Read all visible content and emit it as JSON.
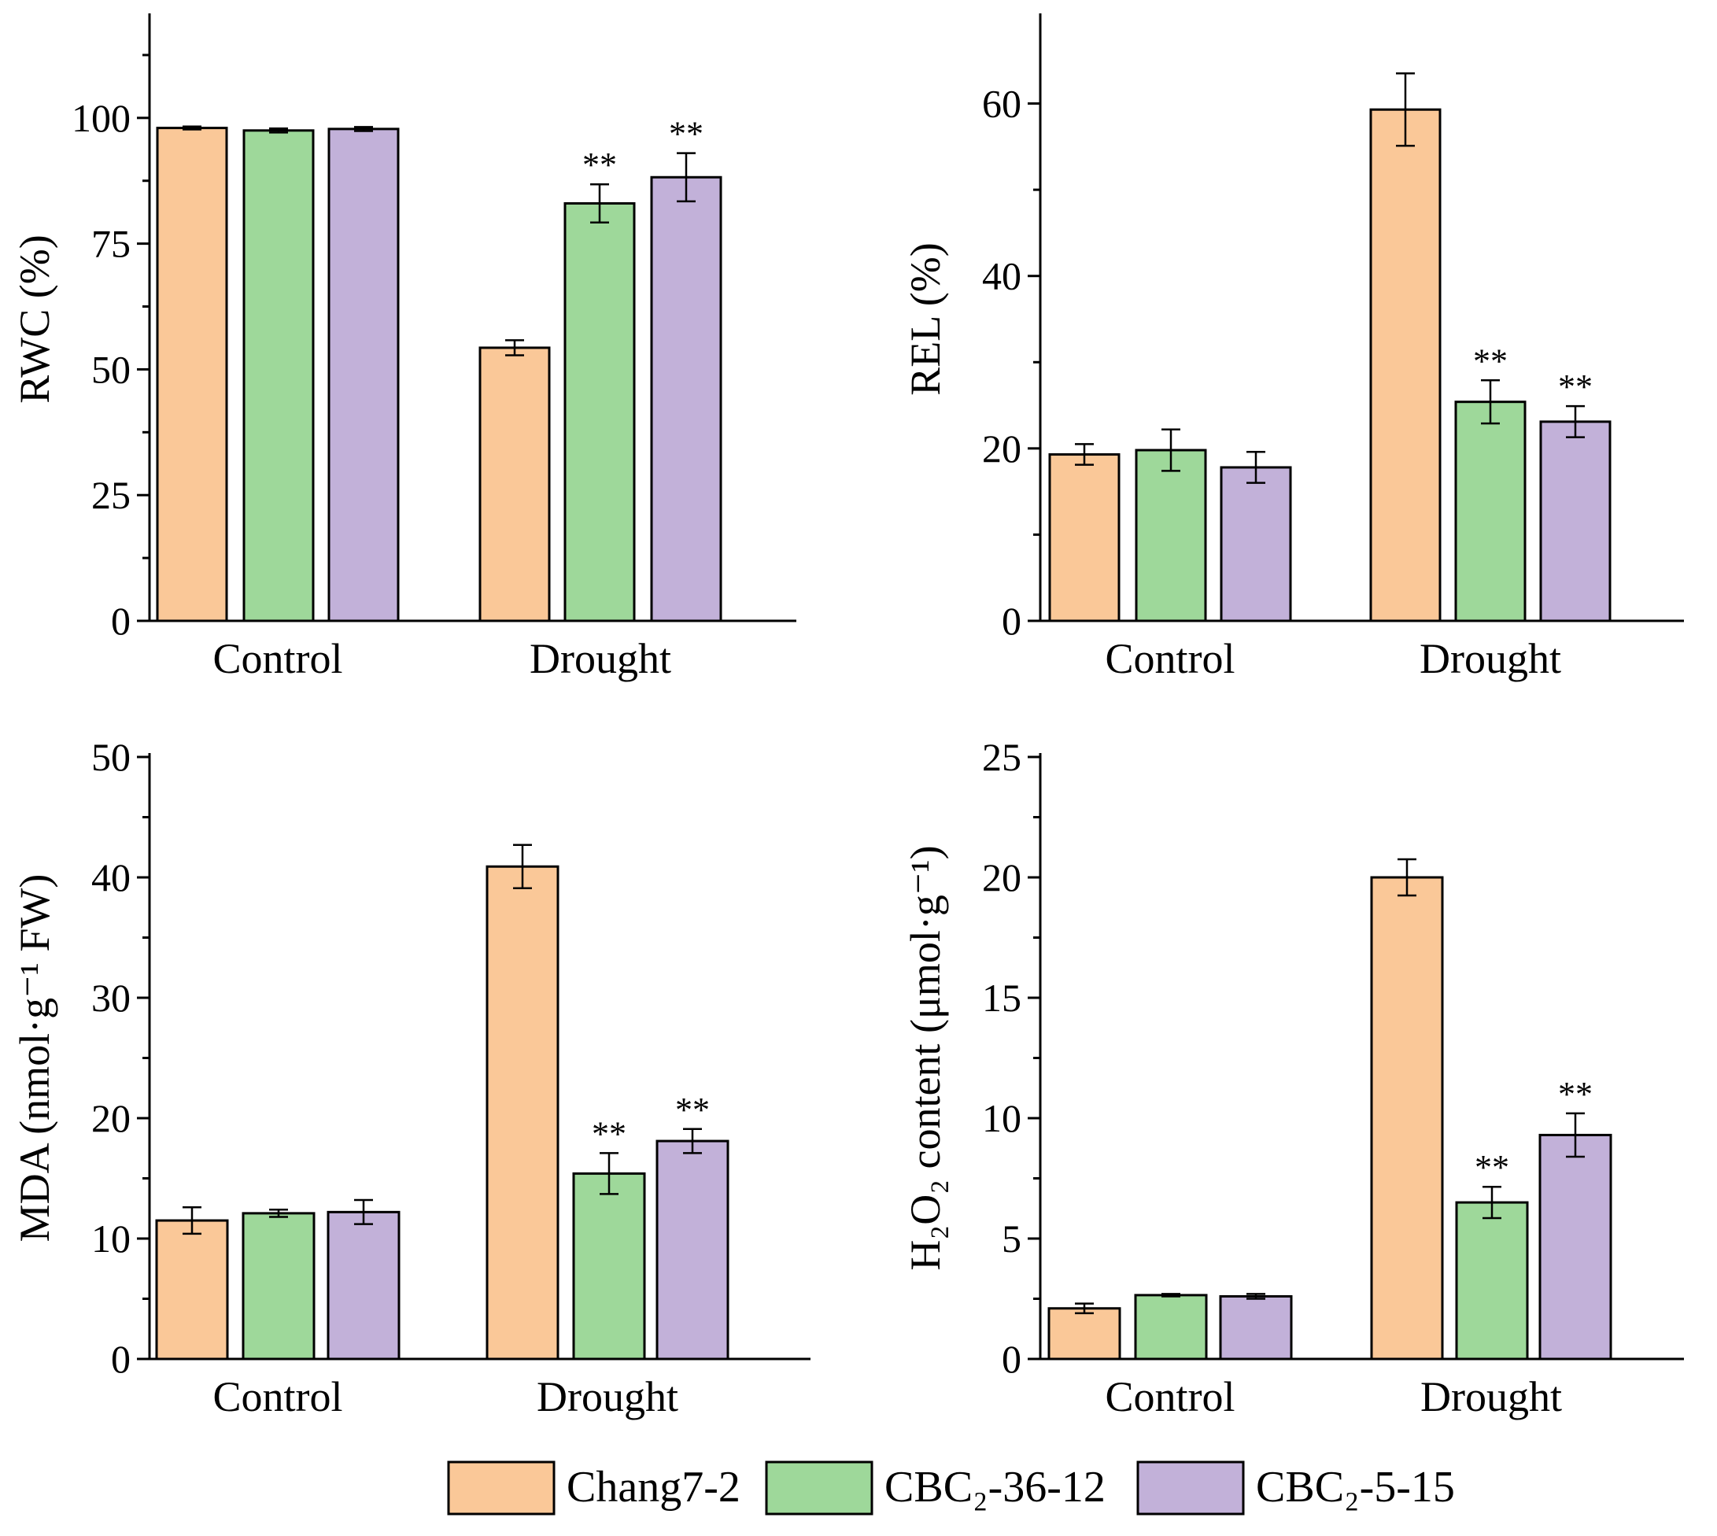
{
  "legend": [
    {
      "label": "Chang7-2",
      "color": "#FAC898"
    },
    {
      "label": "CBC₂-36-12",
      "color": "#9ED89A"
    },
    {
      "label": "CBC₂-5-15",
      "color": "#C2B1D9"
    }
  ],
  "chart_data": [
    {
      "type": "bar",
      "panel": "top-left",
      "categories": [
        "Control",
        "Drought"
      ],
      "ylabel": "RWC (%)",
      "ylim": [
        0,
        120
      ],
      "yticks": [
        0,
        25,
        50,
        75,
        100
      ],
      "series": [
        {
          "name": "Chang7-2",
          "values": [
            98,
            54.3
          ],
          "errors": [
            0.3,
            1.5
          ],
          "sig": [
            "",
            ""
          ]
        },
        {
          "name": "CBC₂-36-12",
          "values": [
            97.5,
            83
          ],
          "errors": [
            0.4,
            3.8
          ],
          "sig": [
            "",
            "**"
          ]
        },
        {
          "name": "CBC₂-5-15",
          "values": [
            97.8,
            88.2
          ],
          "errors": [
            0.4,
            4.8
          ],
          "sig": [
            "",
            "**"
          ]
        }
      ]
    },
    {
      "type": "bar",
      "panel": "top-right",
      "categories": [
        "Control",
        "Drought"
      ],
      "ylabel": "REL (%)",
      "ylim": [
        0,
        70
      ],
      "yticks": [
        0,
        20,
        40,
        60
      ],
      "series": [
        {
          "name": "Chang7-2",
          "values": [
            19.3,
            59.3
          ],
          "errors": [
            1.2,
            4.2
          ],
          "sig": [
            "",
            ""
          ]
        },
        {
          "name": "CBC₂-36-12",
          "values": [
            19.8,
            25.4
          ],
          "errors": [
            2.4,
            2.5
          ],
          "sig": [
            "",
            "**"
          ]
        },
        {
          "name": "CBC₂-5-15",
          "values": [
            17.8,
            23.1
          ],
          "errors": [
            1.8,
            1.8
          ],
          "sig": [
            "",
            "**"
          ]
        }
      ]
    },
    {
      "type": "bar",
      "panel": "bottom-left",
      "categories": [
        "Control",
        "Drought"
      ],
      "ylabel": "MDA (nmol·g⁻¹ FW)",
      "ylim": [
        0,
        50
      ],
      "yticks": [
        0,
        10,
        20,
        30,
        40,
        50
      ],
      "series": [
        {
          "name": "Chang7-2",
          "values": [
            11.5,
            40.9
          ],
          "errors": [
            1.1,
            1.8
          ],
          "sig": [
            "",
            ""
          ]
        },
        {
          "name": "CBC₂-36-12",
          "values": [
            12.1,
            15.4
          ],
          "errors": [
            0.3,
            1.7
          ],
          "sig": [
            "",
            "**"
          ]
        },
        {
          "name": "CBC₂-5-15",
          "values": [
            12.2,
            18.1
          ],
          "errors": [
            1.0,
            1.0
          ],
          "sig": [
            "",
            "**"
          ]
        }
      ]
    },
    {
      "type": "bar",
      "panel": "bottom-right",
      "categories": [
        "Control",
        "Drought"
      ],
      "ylabel": "H₂O₂ content (μmol·g⁻¹)",
      "ylim": [
        0,
        25
      ],
      "yticks": [
        0,
        5,
        10,
        15,
        20,
        25
      ],
      "series": [
        {
          "name": "Chang7-2",
          "values": [
            2.1,
            20
          ],
          "errors": [
            0.2,
            0.75
          ],
          "sig": [
            "",
            ""
          ]
        },
        {
          "name": "CBC₂-36-12",
          "values": [
            2.65,
            6.5
          ],
          "errors": [
            0.05,
            0.65
          ],
          "sig": [
            "",
            "**"
          ]
        },
        {
          "name": "CBC₂-5-15",
          "values": [
            2.6,
            9.3
          ],
          "errors": [
            0.1,
            0.9
          ],
          "sig": [
            "",
            "**"
          ]
        }
      ]
    }
  ]
}
